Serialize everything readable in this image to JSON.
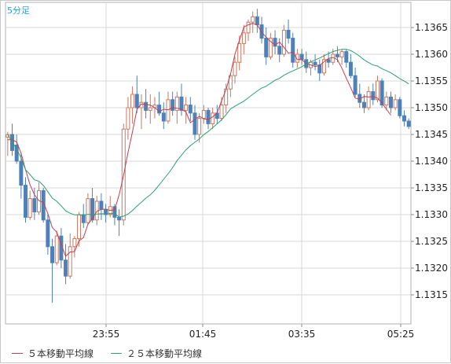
{
  "chart_data": {
    "type": "candlestick",
    "timeframe_label": "5分足",
    "x_tick_labels": [
      "23:55",
      "01:45",
      "03:35",
      "05:25"
    ],
    "y_tick_labels": [
      "1.1365",
      "1.1360",
      "1.1355",
      "1.1350",
      "1.1345",
      "1.1340",
      "1.1335",
      "1.1330",
      "1.1325",
      "1.1320",
      "1.1315"
    ],
    "ylim": [
      1.1311,
      1.1368
    ],
    "grid": true,
    "colors": {
      "up": "#c87860",
      "down": "#4f80b8",
      "ma5": "#c04050",
      "ma25": "#2aa070",
      "grid": "#d8d8d8"
    },
    "legend": [
      {
        "label": "５本移動平均線",
        "color": "#c04050"
      },
      {
        "label": "２５本移動平均線",
        "color": "#2aa070"
      }
    ],
    "candles": [
      [
        1.13445,
        1.13455,
        1.1341,
        1.1345
      ],
      [
        1.1345,
        1.1347,
        1.1341,
        1.1342
      ],
      [
        1.1343,
        1.1345,
        1.13395,
        1.134
      ],
      [
        1.134,
        1.13415,
        1.1333,
        1.13355
      ],
      [
        1.13355,
        1.1337,
        1.13285,
        1.13295
      ],
      [
        1.13295,
        1.13345,
        1.1329,
        1.1333
      ],
      [
        1.1333,
        1.1335,
        1.1329,
        1.13305
      ],
      [
        1.13305,
        1.1336,
        1.133,
        1.13345
      ],
      [
        1.13345,
        1.1335,
        1.13285,
        1.1329
      ],
      [
        1.1329,
        1.133,
        1.13225,
        1.1324
      ],
      [
        1.1324,
        1.13255,
        1.13135,
        1.1321
      ],
      [
        1.1321,
        1.1327,
        1.13205,
        1.1326
      ],
      [
        1.1326,
        1.13275,
        1.132,
        1.13215
      ],
      [
        1.13215,
        1.13245,
        1.1317,
        1.13185
      ],
      [
        1.13185,
        1.13265,
        1.1318,
        1.1324
      ],
      [
        1.1324,
        1.1326,
        1.1322,
        1.13255
      ],
      [
        1.13255,
        1.13305,
        1.1324,
        1.133
      ],
      [
        1.133,
        1.1332,
        1.13275,
        1.13285
      ],
      [
        1.13285,
        1.1334,
        1.1328,
        1.1333
      ],
      [
        1.1333,
        1.1335,
        1.13285,
        1.1329
      ],
      [
        1.1329,
        1.13335,
        1.1328,
        1.13325
      ],
      [
        1.13325,
        1.1334,
        1.1329,
        1.1331
      ],
      [
        1.1331,
        1.1332,
        1.13285,
        1.133
      ],
      [
        1.133,
        1.13335,
        1.13295,
        1.13315
      ],
      [
        1.13315,
        1.1332,
        1.1328,
        1.13295
      ],
      [
        1.13295,
        1.1331,
        1.1326,
        1.1329
      ],
      [
        1.1329,
        1.1347,
        1.1328,
        1.1346
      ],
      [
        1.1346,
        1.1352,
        1.1344,
        1.135
      ],
      [
        1.135,
        1.1354,
        1.1347,
        1.13525
      ],
      [
        1.13525,
        1.1356,
        1.1349,
        1.135
      ],
      [
        1.135,
        1.13525,
        1.1346,
        1.1351
      ],
      [
        1.1351,
        1.13535,
        1.1348,
        1.13495
      ],
      [
        1.13495,
        1.13525,
        1.1347,
        1.135
      ],
      [
        1.135,
        1.1352,
        1.1348,
        1.13505
      ],
      [
        1.13505,
        1.1353,
        1.13485,
        1.1349
      ],
      [
        1.1349,
        1.1351,
        1.1346,
        1.13475
      ],
      [
        1.13475,
        1.1353,
        1.1347,
        1.13515
      ],
      [
        1.13515,
        1.1353,
        1.13485,
        1.13495
      ],
      [
        1.13495,
        1.1353,
        1.1347,
        1.1352
      ],
      [
        1.1352,
        1.13545,
        1.13485,
        1.13495
      ],
      [
        1.13495,
        1.1352,
        1.1347,
        1.13505
      ],
      [
        1.13505,
        1.1352,
        1.13475,
        1.1349
      ],
      [
        1.1349,
        1.13505,
        1.1344,
        1.1345
      ],
      [
        1.1345,
        1.1349,
        1.13435,
        1.1348
      ],
      [
        1.1348,
        1.13505,
        1.1347,
        1.13495
      ],
      [
        1.13495,
        1.135,
        1.1346,
        1.1347
      ],
      [
        1.1347,
        1.135,
        1.1346,
        1.1349
      ],
      [
        1.1349,
        1.13505,
        1.1347,
        1.1348
      ],
      [
        1.1348,
        1.1352,
        1.13475,
        1.13505
      ],
      [
        1.13505,
        1.13545,
        1.1349,
        1.13535
      ],
      [
        1.13535,
        1.13565,
        1.1352,
        1.1356
      ],
      [
        1.1356,
        1.13595,
        1.13545,
        1.13585
      ],
      [
        1.13585,
        1.13635,
        1.1357,
        1.1362
      ],
      [
        1.1362,
        1.13655,
        1.136,
        1.1364
      ],
      [
        1.1364,
        1.13665,
        1.13625,
        1.1366
      ],
      [
        1.1366,
        1.1368,
        1.1364,
        1.1367
      ],
      [
        1.1367,
        1.13685,
        1.1364,
        1.13655
      ],
      [
        1.13655,
        1.1367,
        1.1362,
        1.1363
      ],
      [
        1.1363,
        1.1365,
        1.1358,
        1.13595
      ],
      [
        1.13595,
        1.1364,
        1.1359,
        1.1363
      ],
      [
        1.1363,
        1.13645,
        1.136,
        1.13615
      ],
      [
        1.13615,
        1.1363,
        1.13585,
        1.136
      ],
      [
        1.136,
        1.13655,
        1.13595,
        1.13645
      ],
      [
        1.13645,
        1.13665,
        1.1362,
        1.1363
      ],
      [
        1.1363,
        1.1364,
        1.13575,
        1.13585
      ],
      [
        1.13585,
        1.1361,
        1.13575,
        1.136
      ],
      [
        1.136,
        1.1361,
        1.1358,
        1.1359
      ],
      [
        1.1359,
        1.13605,
        1.13565,
        1.13575
      ],
      [
        1.13575,
        1.1359,
        1.1356,
        1.13585
      ],
      [
        1.13585,
        1.136,
        1.1357,
        1.1358
      ],
      [
        1.1358,
        1.1359,
        1.1355,
        1.13565
      ],
      [
        1.13565,
        1.136,
        1.1356,
        1.1359
      ],
      [
        1.1359,
        1.13605,
        1.13575,
        1.13585
      ],
      [
        1.13585,
        1.1361,
        1.1358,
        1.136
      ],
      [
        1.136,
        1.13615,
        1.13585,
        1.13595
      ],
      [
        1.13595,
        1.1361,
        1.1358,
        1.13605
      ],
      [
        1.13605,
        1.1361,
        1.13575,
        1.13585
      ],
      [
        1.13585,
        1.136,
        1.13555,
        1.1356
      ],
      [
        1.1356,
        1.13575,
        1.1352,
        1.13525
      ],
      [
        1.13525,
        1.13545,
        1.135,
        1.1351
      ],
      [
        1.1351,
        1.13525,
        1.1349,
        1.135
      ],
      [
        1.135,
        1.1354,
        1.13495,
        1.1353
      ],
      [
        1.1353,
        1.13545,
        1.13505,
        1.13515
      ],
      [
        1.13515,
        1.1356,
        1.1351,
        1.1355
      ],
      [
        1.1355,
        1.13555,
        1.135,
        1.13505
      ],
      [
        1.13505,
        1.1353,
        1.13495,
        1.1352
      ],
      [
        1.1352,
        1.1353,
        1.1349,
        1.135
      ],
      [
        1.135,
        1.13525,
        1.13495,
        1.13515
      ],
      [
        1.13515,
        1.1352,
        1.1348,
        1.13485
      ],
      [
        1.13485,
        1.13495,
        1.13465,
        1.13475
      ],
      [
        1.13475,
        1.1348,
        1.1346,
        1.13465
      ]
    ],
    "ma5": [
      1.1344,
      1.1344,
      1.13436,
      1.13415,
      1.13384,
      1.13356,
      1.13337,
      1.13326,
      1.13323,
      1.13302,
      1.13276,
      1.13267,
      1.13245,
      1.13222,
      1.1323,
      1.13231,
      1.13251,
      1.13257,
      1.13282,
      1.13293,
      1.13306,
      1.1331,
      1.1331,
      1.13308,
      1.13309,
      1.13337,
      1.13374,
      1.13416,
      1.13455,
      1.13497,
      1.13507,
      1.13506,
      1.13505,
      1.135,
      1.13493,
      1.13497,
      1.13496,
      1.135,
      1.13499,
      1.13497,
      1.13492,
      1.13472,
      1.13478,
      1.13484,
      1.13479,
      1.13478,
      1.13483,
      1.1349,
      1.13513,
      1.13534,
      1.13563,
      1.136,
      1.13626,
      1.13651,
      1.13655,
      1.13658,
      1.13655,
      1.13641,
      1.13632,
      1.13624,
      1.13617,
      1.13623,
      1.13613,
      1.13602,
      1.13604,
      1.1359,
      1.1359,
      1.13582,
      1.1358,
      1.13577,
      1.13579,
      1.13586,
      1.13592,
      1.13594,
      1.1359,
      1.13574,
      1.13555,
      1.13537,
      1.13518,
      1.13516,
      1.13521,
      1.1352,
      1.13521,
      1.13518,
      1.13509,
      1.13497,
      1.13486
    ]
  }
}
